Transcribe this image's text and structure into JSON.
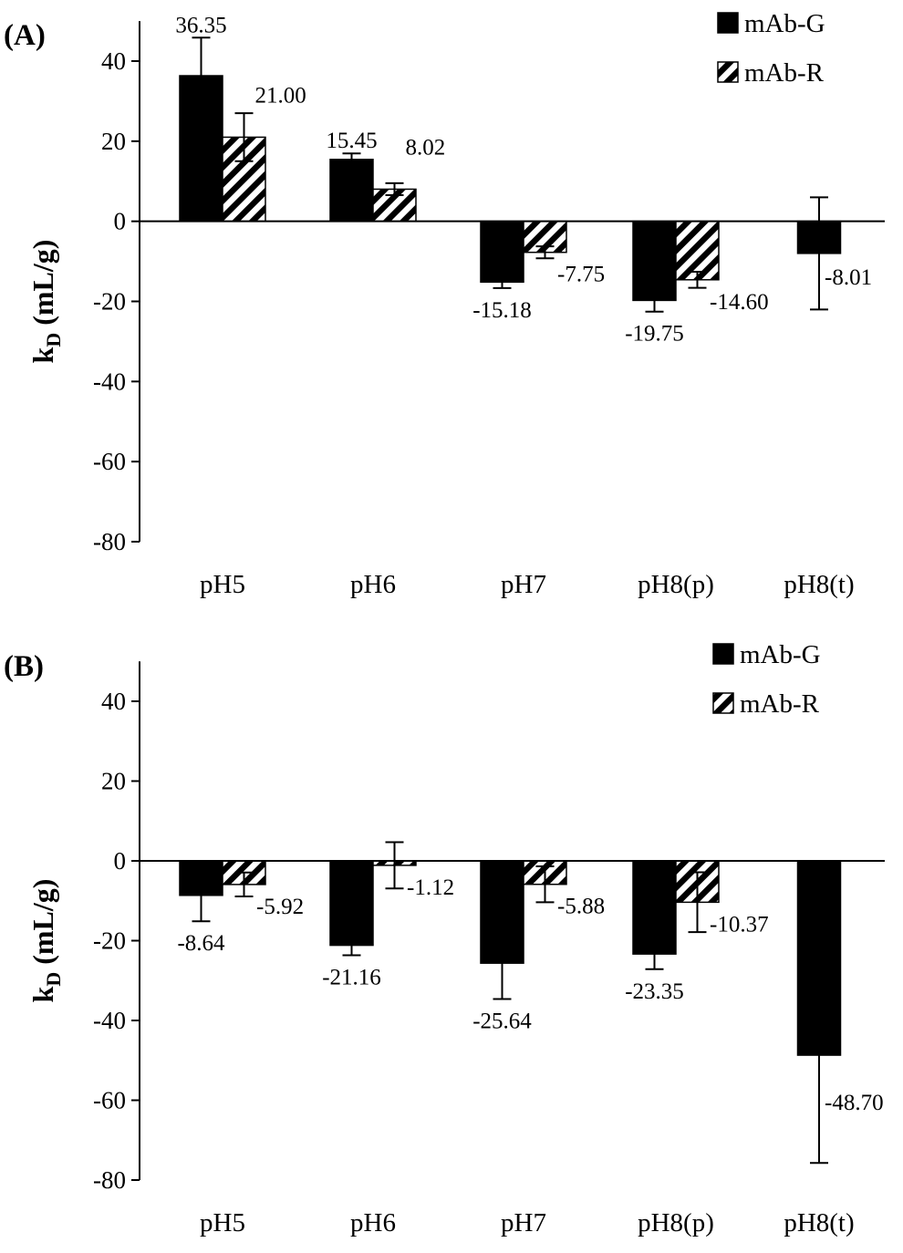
{
  "chart_data": [
    {
      "type": "bar",
      "panel_label": "(A)",
      "ylabel_main": "k",
      "ylabel_sub": "D",
      "ylabel_unit": "(mL/g)",
      "ylim": [
        -80,
        50
      ],
      "yticks": [
        40,
        20,
        0,
        -20,
        -40,
        -60,
        -80
      ],
      "grid": false,
      "legend_position": "top-right",
      "categories": [
        "pH5",
        "pH6",
        "pH7",
        "pH8(p)",
        "pH8(t)"
      ],
      "series": [
        {
          "name": "mAb-G",
          "pattern": "solid",
          "values": [
            36.35,
            15.45,
            -15.18,
            -19.75,
            -8.01
          ],
          "labels": [
            "36.35",
            "15.45",
            "-15.18",
            "-19.75",
            "-8.01"
          ],
          "errors": [
            9.5,
            1.5,
            1.5,
            2.8,
            14
          ]
        },
        {
          "name": "mAb-R",
          "pattern": "hatched",
          "values": [
            21.0,
            8.02,
            -7.75,
            -14.6,
            null
          ],
          "labels": [
            "21.00",
            "8.02",
            "-7.75",
            "-14.60",
            ""
          ],
          "errors": [
            6.0,
            1.5,
            1.5,
            2.0,
            null
          ]
        }
      ]
    },
    {
      "type": "bar",
      "panel_label": "(B)",
      "ylabel_main": "k",
      "ylabel_sub": "D",
      "ylabel_unit": "(mL/g)",
      "ylim": [
        -80,
        50
      ],
      "yticks": [
        40,
        20,
        0,
        -20,
        -40,
        -60,
        -80
      ],
      "grid": false,
      "legend_position": "top-right",
      "categories": [
        "pH5",
        "pH6",
        "pH7",
        "pH8(p)",
        "pH8(t)"
      ],
      "series": [
        {
          "name": "mAb-G",
          "pattern": "solid",
          "values": [
            -8.64,
            -21.16,
            -25.64,
            -23.35,
            -48.7
          ],
          "labels": [
            "-8.64",
            "-21.16",
            "-25.64",
            "-23.35",
            "-48.70"
          ],
          "errors": [
            6.5,
            2.5,
            9.0,
            3.8,
            27
          ]
        },
        {
          "name": "mAb-R",
          "pattern": "hatched",
          "values": [
            -5.92,
            -1.12,
            -5.88,
            -10.37,
            null
          ],
          "labels": [
            "-5.92",
            "-1.12",
            "-5.88",
            "-10.37",
            ""
          ],
          "errors": [
            3.0,
            5.8,
            4.5,
            7.5,
            null
          ]
        }
      ]
    }
  ]
}
